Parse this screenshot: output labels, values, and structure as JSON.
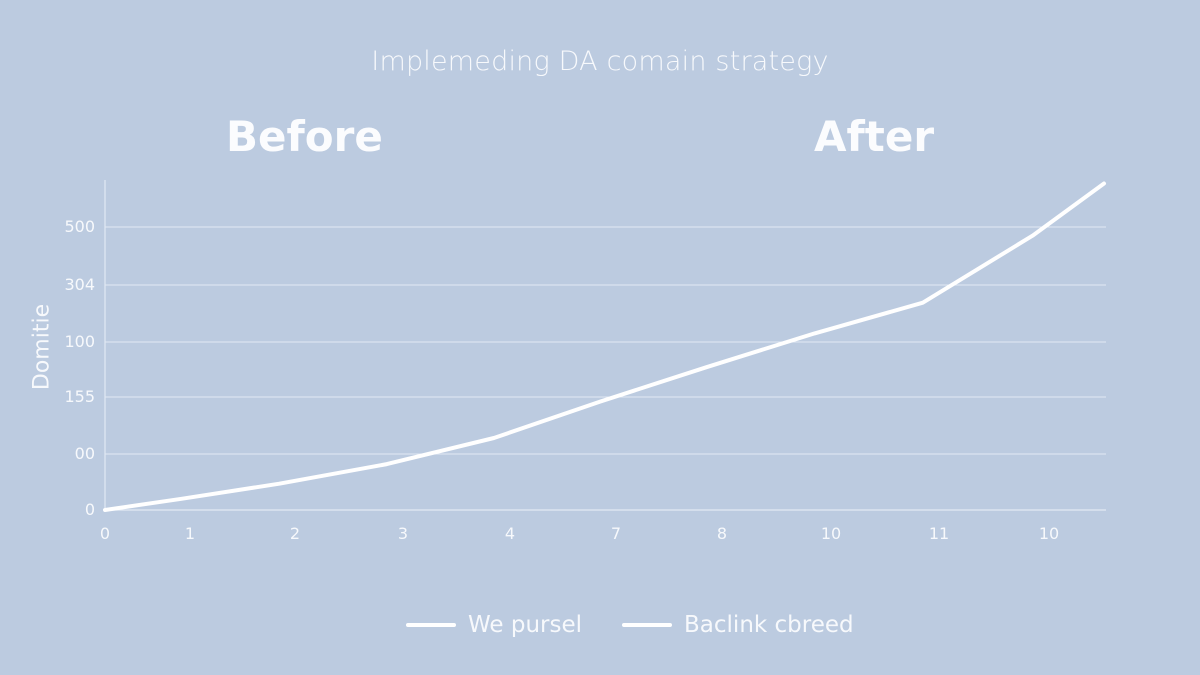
{
  "chart_data": {
    "type": "line",
    "title": "Implemeding DA comain strategy",
    "panel_labels": [
      "Before",
      "After"
    ],
    "ylabel": "Domitie",
    "xlabel": "",
    "x_tick_labels": [
      "0",
      "1",
      "2",
      "3",
      "4",
      "7",
      "8",
      "10",
      "11",
      "10"
    ],
    "y_tick_labels": [
      "0",
      "00",
      "155",
      "100",
      "304",
      "500"
    ],
    "y_tick_values": [
      0,
      1,
      2,
      3,
      4,
      5
    ],
    "ylim": [
      0,
      5.75
    ],
    "grid": true,
    "series": [
      {
        "name": "We pursel",
        "x": [
          0,
          0.9,
          1.85,
          2.85,
          3.85,
          4.85,
          5.85,
          6.85,
          7.85,
          8.85,
          9.5
        ],
        "y": [
          0,
          0.2,
          0.47,
          0.82,
          1.28,
          1.92,
          2.54,
          3.15,
          3.69,
          4.85,
          5.75
        ]
      }
    ],
    "legend": {
      "position": "bottom-center",
      "items": [
        "We pursel",
        "Baclink cbreed"
      ]
    },
    "colors": {
      "background": "#bccbe0",
      "line": "#ffffff",
      "grid": "#e2e9f3"
    }
  }
}
